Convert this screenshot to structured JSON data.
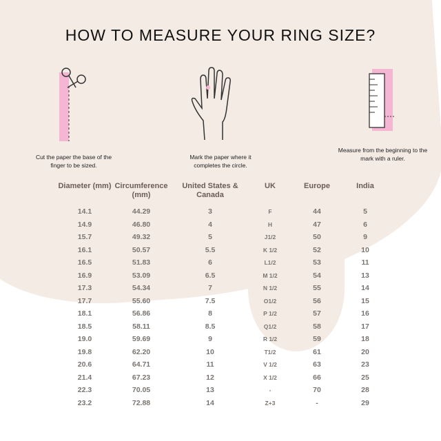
{
  "title": "HOW TO MEASURE YOUR RING SIZE?",
  "steps": [
    {
      "icon": "scissors-paper-icon",
      "caption": "Cut the paper the base of the finger to be sized."
    },
    {
      "icon": "hand-icon",
      "caption": "Mark the paper where it completes the circle."
    },
    {
      "icon": "ruler-icon",
      "caption": "Measure from the beginning to the mark with a ruler."
    }
  ],
  "colors": {
    "accent": "#f4b6d2",
    "text": "#6b5d55",
    "background": "#f3ebe4"
  },
  "table": {
    "headers": [
      "Diameter (mm)",
      "Circumference (mm)",
      "United States & Canada",
      "UK",
      "Europe",
      "India"
    ],
    "columns": [
      [
        "14.1",
        "14.9",
        "15.7",
        "16.1",
        "16.5",
        "16.9",
        "17.3",
        "17.7",
        "18.1",
        "18.5",
        "19.0",
        "19.8",
        "20.6",
        "21.4",
        "22.3",
        "23.2"
      ],
      [
        "44.29",
        "46.80",
        "49.32",
        "50.57",
        "51.83",
        "53.09",
        "54.34",
        "55.60",
        "56.86",
        "58.11",
        "59.69",
        "62.20",
        "64.71",
        "67.23",
        "70.05",
        "72.88"
      ],
      [
        "3",
        "4",
        "5",
        "5.5",
        "6",
        "6.5",
        "7",
        "7.5",
        "8",
        "8.5",
        "9",
        "10",
        "11",
        "12",
        "13",
        "14"
      ],
      [
        "F",
        "H",
        "J1/2",
        "K 1/2",
        "L1/2",
        "M 1/2",
        "N 1/2",
        "O1/2",
        "P 1/2",
        "Q1/2",
        "R 1/2",
        "T1/2",
        "V 1/2",
        "X 1/2",
        "-",
        "Z+3"
      ],
      [
        "44",
        "47",
        "50",
        "52",
        "53",
        "54",
        "55",
        "56",
        "57",
        "58",
        "59",
        "61",
        "63",
        "66",
        "70",
        "-"
      ],
      [
        "5",
        "6",
        "9",
        "10",
        "11",
        "13",
        "14",
        "15",
        "16",
        "17",
        "18",
        "20",
        "23",
        "25",
        "28",
        "29"
      ]
    ]
  }
}
